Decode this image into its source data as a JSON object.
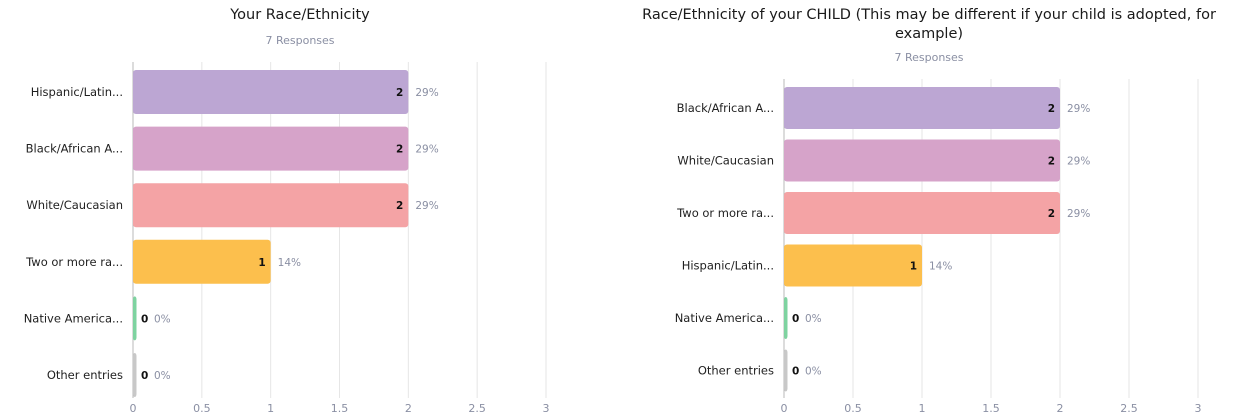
{
  "chart_data": [
    {
      "type": "bar",
      "orientation": "horizontal",
      "title": "Your Race/Ethnicity",
      "subtitle": "7 Responses",
      "categories": [
        "Hispanic/Latin...",
        "Black/African A...",
        "White/Caucasian",
        "Two or more ra...",
        "Native America...",
        "Other entries"
      ],
      "values": [
        2,
        2,
        2,
        1,
        0,
        0
      ],
      "percent_labels": [
        "29%",
        "29%",
        "29%",
        "14%",
        "0%",
        "0%"
      ],
      "colors": [
        "#bca6d3",
        "#d6a3c9",
        "#f4a3a5",
        "#fcbf4d",
        "#7ed3a0",
        "#c8c8c8"
      ],
      "xlim": [
        0,
        3
      ],
      "xticks": [
        "0",
        "0.5",
        "1",
        "1.5",
        "2",
        "2.5",
        "3"
      ],
      "grid": true
    },
    {
      "type": "bar",
      "orientation": "horizontal",
      "title": "Race/Ethnicity of your CHILD (This may be different if your child is adopted, for example)",
      "subtitle": "7 Responses",
      "categories": [
        "Black/African A...",
        "White/Caucasian",
        "Two or more ra...",
        "Hispanic/Latin...",
        "Native America...",
        "Other entries"
      ],
      "values": [
        2,
        2,
        2,
        1,
        0,
        0
      ],
      "percent_labels": [
        "29%",
        "29%",
        "29%",
        "14%",
        "0%",
        "0%"
      ],
      "colors": [
        "#bca6d3",
        "#d6a3c9",
        "#f4a3a5",
        "#fcbf4d",
        "#7ed3a0",
        "#c8c8c8"
      ],
      "xlim": [
        0,
        3
      ],
      "xticks": [
        "0",
        "0.5",
        "1",
        "1.5",
        "2",
        "2.5",
        "3"
      ],
      "grid": true
    }
  ]
}
